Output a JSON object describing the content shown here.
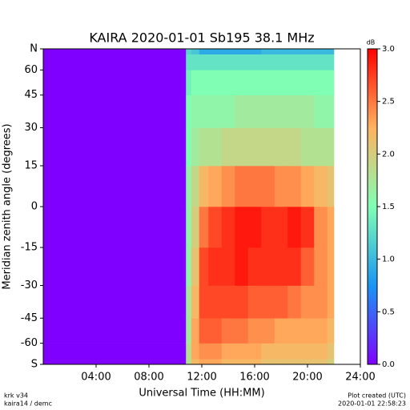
{
  "chart_data": {
    "type": "heatmap",
    "title": "KAIRA   2020-01-01   Sb195   38.1 MHz",
    "xlabel": "Universal Time (HH:MM)",
    "ylabel": "Meridian zenith angle (degrees)",
    "colorbar_label": "dB",
    "footer_left": [
      "krk v34",
      "kaira14 / demc"
    ],
    "footer_right": [
      "Plot created (UTC)",
      "2020-01-01 22:58:23"
    ],
    "yscale": "sine",
    "xlim": [
      0,
      24
    ],
    "ylim": [
      -90,
      90
    ],
    "xticks": [
      {
        "value": 4,
        "label": "04:00"
      },
      {
        "value": 8,
        "label": "08:00"
      },
      {
        "value": 12,
        "label": "12:00"
      },
      {
        "value": 16,
        "label": "16:00"
      },
      {
        "value": 20,
        "label": "20:00"
      },
      {
        "value": 24,
        "label": "24:00"
      }
    ],
    "yticks": [
      {
        "value": 90,
        "label": "N"
      },
      60,
      45,
      30,
      15,
      0,
      -15,
      -30,
      -45,
      -60,
      {
        "value": -90,
        "label": "S"
      }
    ],
    "clim": [
      0,
      3
    ],
    "cticks": [
      {
        "value": 0,
        "label": "0.0"
      },
      {
        "value": 0.5,
        "label": "0.5"
      },
      {
        "value": 1,
        "label": "1.0"
      },
      {
        "value": 1.5,
        "label": "1.5"
      },
      {
        "value": 2,
        "label": "2.0"
      },
      {
        "value": 2.5,
        "label": "2.5"
      },
      {
        "value": 3,
        "label": "3.0"
      }
    ],
    "colormap": [
      "#8000ff",
      "#1996f3",
      "#80ffb4",
      "#ffb360",
      "#ff0000"
    ],
    "xbins": [
      0,
      10.8,
      11.2,
      11.8,
      12.5,
      13.5,
      14.5,
      15.5,
      16.5,
      17.5,
      18.5,
      19.5,
      20.5,
      21.5,
      22
    ],
    "ybins": [
      -90,
      -75,
      -60,
      -45,
      -30,
      -15,
      0,
      15,
      30,
      45,
      60,
      75,
      90
    ],
    "values": [
      [
        0,
        0,
        0,
        0,
        0,
        0,
        0,
        0,
        0,
        0,
        0,
        0
      ],
      [
        1.8,
        1.8,
        1.7,
        1.7,
        1.6,
        1.6,
        1.6,
        1.5,
        1.5,
        1.4,
        1.3,
        1.2
      ],
      [
        2.2,
        2.3,
        2.3,
        2.2,
        2.1,
        2.0,
        1.9,
        1.7,
        1.6,
        1.5,
        1.3,
        1.1
      ],
      [
        2.3,
        2.4,
        2.6,
        2.7,
        2.7,
        2.5,
        2.2,
        1.8,
        1.6,
        1.5,
        1.3,
        0.9
      ],
      [
        2.3,
        2.4,
        2.6,
        2.7,
        2.8,
        2.7,
        2.3,
        1.8,
        1.6,
        1.5,
        1.3,
        0.9
      ],
      [
        2.2,
        2.3,
        2.5,
        2.7,
        2.8,
        2.8,
        2.4,
        1.9,
        1.6,
        1.5,
        1.3,
        0.9
      ],
      [
        2.2,
        2.3,
        2.5,
        2.7,
        2.9,
        2.9,
        2.5,
        1.9,
        1.7,
        1.5,
        1.3,
        0.9
      ],
      [
        2.2,
        2.3,
        2.4,
        2.6,
        2.8,
        2.9,
        2.5,
        1.9,
        1.7,
        1.5,
        1.3,
        0.9
      ],
      [
        2.1,
        2.2,
        2.4,
        2.6,
        2.8,
        2.8,
        2.5,
        1.9,
        1.7,
        1.5,
        1.3,
        1.0
      ],
      [
        2.1,
        2.2,
        2.3,
        2.6,
        2.8,
        2.8,
        2.4,
        1.9,
        1.7,
        1.5,
        1.3,
        1.0
      ],
      [
        2.1,
        2.2,
        2.3,
        2.5,
        2.8,
        2.9,
        2.4,
        1.9,
        1.7,
        1.5,
        1.3,
        1.0
      ],
      [
        2.1,
        2.2,
        2.3,
        2.4,
        2.6,
        2.8,
        2.3,
        1.8,
        1.7,
        1.5,
        1.3,
        1.0
      ],
      [
        2.1,
        2.2,
        2.3,
        2.4,
        2.4,
        2.4,
        2.2,
        1.8,
        1.6,
        1.5,
        1.3,
        1.0
      ],
      [
        2.0,
        2.1,
        2.2,
        2.3,
        2.3,
        2.3,
        2.1,
        1.8,
        1.6,
        1.5,
        1.3,
        1.0
      ]
    ]
  }
}
